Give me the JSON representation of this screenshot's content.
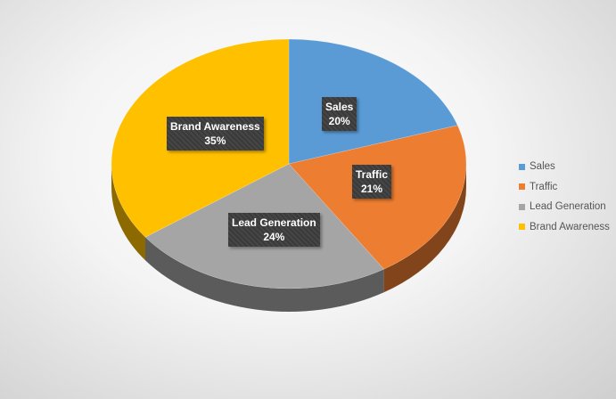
{
  "chart_data": {
    "type": "pie",
    "style": "3d",
    "categories": [
      "Sales",
      "Traffic",
      "Lead Generation",
      "Brand Awareness"
    ],
    "values": [
      20,
      21,
      24,
      35
    ],
    "data_labels": [
      {
        "category": "Sales",
        "percent": "20%"
      },
      {
        "category": "Traffic",
        "percent": "21%"
      },
      {
        "category": "Lead Generation",
        "percent": "24%"
      },
      {
        "category": "Brand Awareness",
        "percent": "35%"
      }
    ],
    "colors": [
      "#5B9BD5",
      "#ED7D31",
      "#A5A5A5",
      "#FFC000"
    ],
    "legend": {
      "position": "right",
      "items": [
        "Sales",
        "Traffic",
        "Lead Generation",
        "Brand Awareness"
      ]
    },
    "title": ""
  }
}
